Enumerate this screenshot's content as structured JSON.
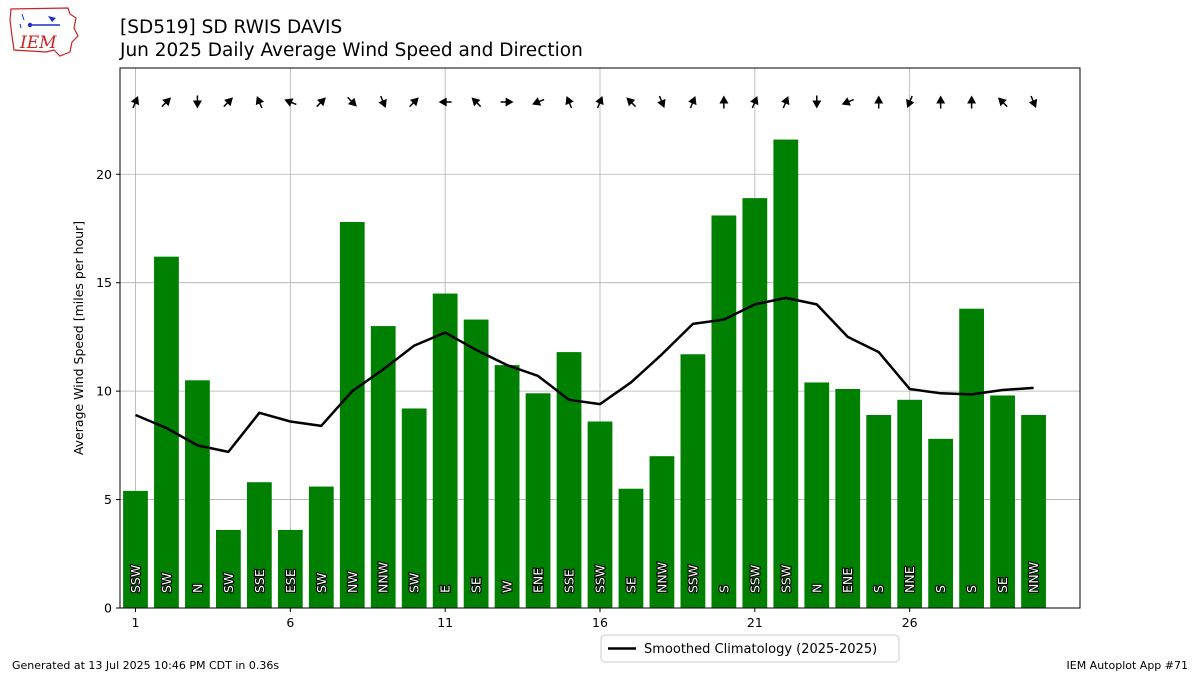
{
  "header": {
    "title_line1": "[SD519] SD RWIS DAVIS",
    "title_line2": "Jun 2025 Daily Average Wind Speed and Direction",
    "logo_text": "IEM"
  },
  "footer": {
    "left": "Generated at 13 Jul 2025 10:46 PM CDT in 0.36s",
    "right": "IEM Autoplot App #71"
  },
  "colors": {
    "bar": "#008000",
    "line": "#000000",
    "grid": "#b0b0b0",
    "logo": "#cc2222"
  },
  "chart_data": {
    "type": "bar",
    "ylabel": "Average Wind Speed [miles per hour]",
    "xlabel": "",
    "xlim": [
      0.5,
      31.5
    ],
    "ylim": [
      0,
      24.9
    ],
    "grid": true,
    "legend_placement": "bottom-center",
    "x_ticks": [
      1,
      6,
      11,
      16,
      21,
      26
    ],
    "y_ticks": [
      0,
      5,
      10,
      15,
      20
    ],
    "days": [
      1,
      2,
      3,
      4,
      5,
      6,
      7,
      8,
      9,
      10,
      11,
      12,
      13,
      14,
      15,
      16,
      17,
      18,
      19,
      20,
      21,
      22,
      23,
      24,
      25,
      26,
      27,
      28,
      29,
      30
    ],
    "values": [
      5.4,
      16.2,
      10.5,
      3.6,
      5.8,
      3.6,
      5.6,
      17.8,
      13.0,
      9.2,
      14.5,
      13.3,
      11.2,
      9.9,
      11.8,
      8.6,
      5.5,
      7.0,
      11.7,
      18.1,
      18.9,
      21.6,
      10.4,
      10.1,
      8.9,
      9.6,
      7.8,
      13.8,
      9.8,
      8.9
    ],
    "directions": [
      "SSW",
      "SW",
      "N",
      "SW",
      "SSE",
      "ESE",
      "SW",
      "NW",
      "NNW",
      "SW",
      "E",
      "SE",
      "W",
      "ENE",
      "SSE",
      "SSW",
      "SE",
      "NNW",
      "SSW",
      "S",
      "SSW",
      "SSW",
      "N",
      "ENE",
      "S",
      "NNE",
      "S",
      "S",
      "SE",
      "NNW"
    ],
    "series": [
      {
        "name": "Smoothed Climatology (2025-2025)",
        "values": [
          8.9,
          8.3,
          7.5,
          7.2,
          9.0,
          8.6,
          8.4,
          10.0,
          11.0,
          12.1,
          12.7,
          11.9,
          11.2,
          10.7,
          9.6,
          9.4,
          10.4,
          11.7,
          13.1,
          13.3,
          14.0,
          14.3,
          14.0,
          12.5,
          11.8,
          10.1,
          9.9,
          9.85,
          10.05,
          10.15
        ]
      }
    ]
  }
}
